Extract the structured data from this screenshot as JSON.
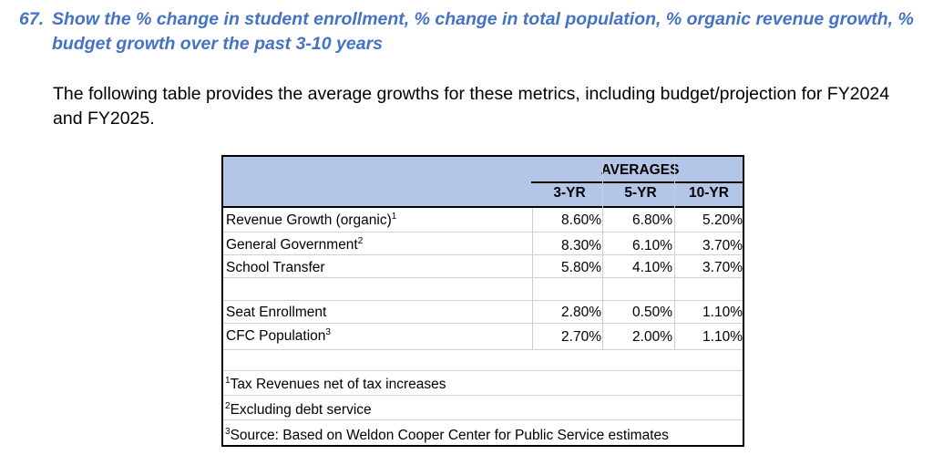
{
  "question": {
    "number": "67.",
    "text": "Show the % change in student enrollment, % change in total population, % organic revenue growth, % budget growth over the past 3-10 years"
  },
  "intro": "The following table provides the average growths for these metrics, including budget/projection for FY2024 and FY2025.",
  "table": {
    "group_header": "AVERAGES",
    "columns": [
      "3-YR",
      "5-YR",
      "10-YR"
    ],
    "rows": [
      {
        "label": "Revenue Growth (organic)",
        "sup": "1",
        "values": [
          "8.60%",
          "6.80%",
          "5.20%"
        ]
      },
      {
        "label": "General Government",
        "sup": "2",
        "values": [
          "8.30%",
          "6.10%",
          "3.70%"
        ]
      },
      {
        "label": "School Transfer",
        "sup": "",
        "values": [
          "5.80%",
          "4.10%",
          "3.70%"
        ]
      },
      {
        "label": "Seat Enrollment",
        "sup": "",
        "values": [
          "2.80%",
          "0.50%",
          "1.10%"
        ]
      },
      {
        "label": "CFC Population",
        "sup": "3",
        "values": [
          "2.70%",
          "2.00%",
          "1.10%"
        ]
      }
    ],
    "footnotes": [
      {
        "marker": "1",
        "text": "Tax Revenues net of tax increases"
      },
      {
        "marker": "2",
        "text": "Excluding debt service"
      },
      {
        "marker": "3",
        "text": "Source: Based on Weldon Cooper Center for Public Service estimates"
      }
    ]
  },
  "colors": {
    "question": "#4472c4",
    "header_fill": "#b4c6e7"
  }
}
